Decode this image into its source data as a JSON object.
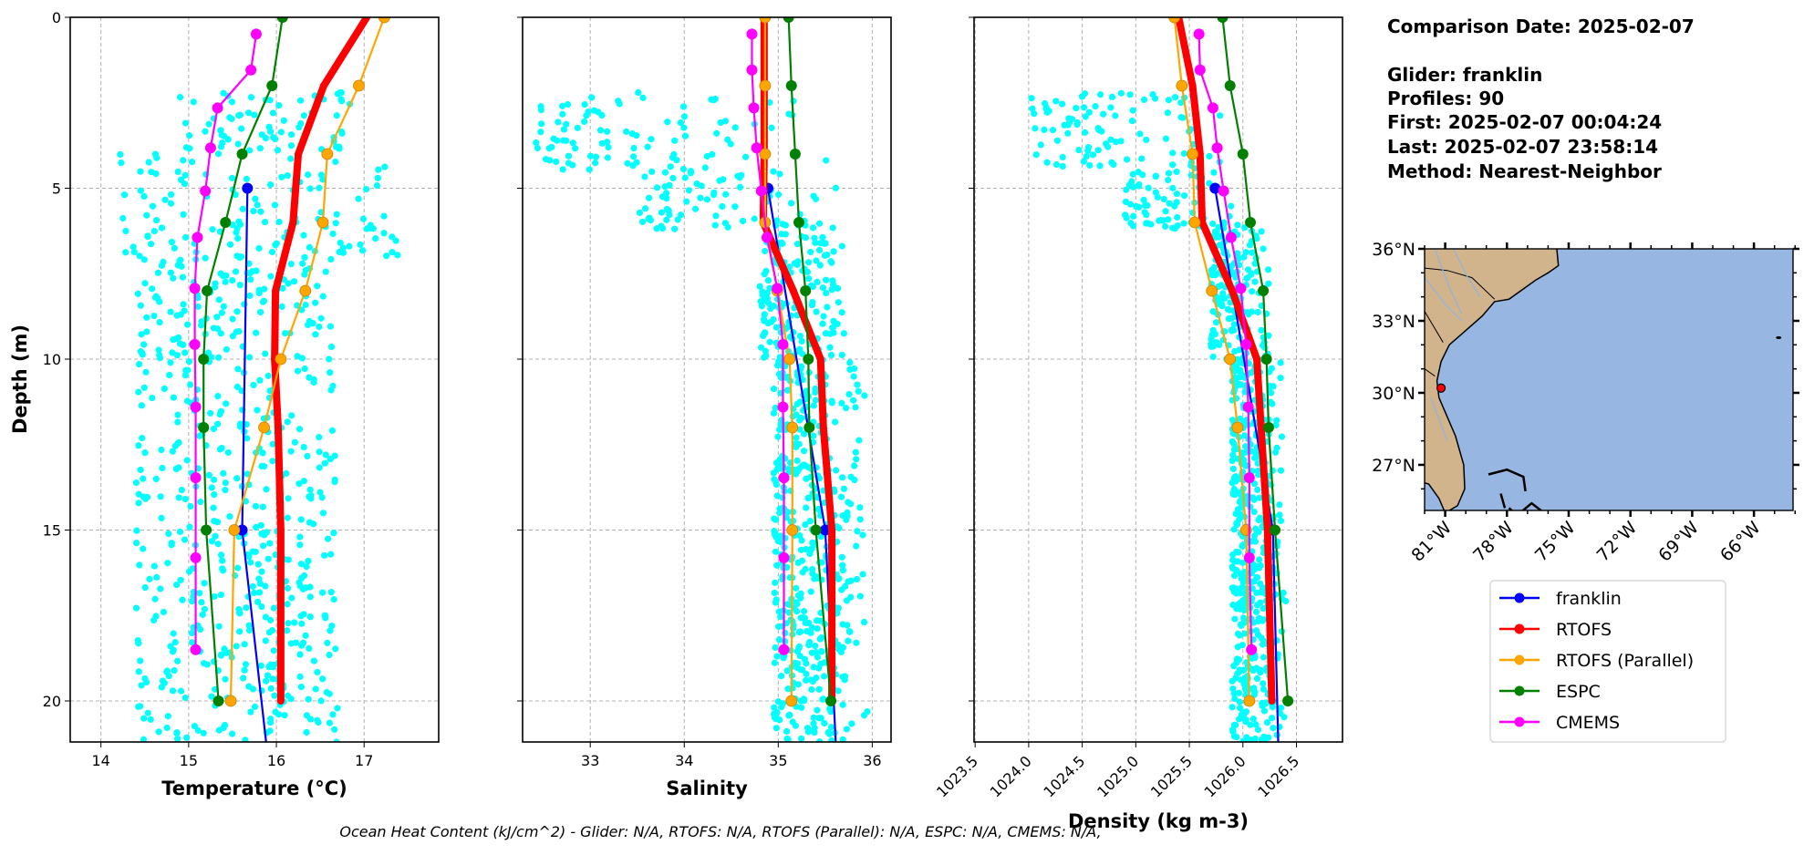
{
  "info": {
    "comparison_date": "Comparison Date: 2025-02-07",
    "glider": "Glider: franklin",
    "profiles": "Profiles: 90",
    "first": "First: 2025-02-07 00:04:24",
    "last": "Last: 2025-02-07 23:58:14",
    "method": "Method: Nearest-Neighbor"
  },
  "footer_note": "Ocean Heat Content (kJ/cm^2) - Glider: N/A,  RTOFS: N/A,  RTOFS (Parallel): N/A,  ESPC: N/A,  CMEMS: N/A,",
  "legend": {
    "placement": "below-map",
    "items": [
      {
        "label": "franklin",
        "color": "#0000ff"
      },
      {
        "label": "RTOFS",
        "color": "#ff0000"
      },
      {
        "label": "RTOFS (Parallel)",
        "color": "#ffa500"
      },
      {
        "label": "ESPC",
        "color": "#008000"
      },
      {
        "label": "CMEMS",
        "color": "#ff00ff"
      }
    ]
  },
  "observation_color": "#00ffff",
  "chart_data": [
    {
      "type": "line",
      "id": "temperature",
      "xlabel": "Temperature (°C)",
      "ylabel": "Depth (m)",
      "xlim": [
        13.65,
        17.85
      ],
      "ylim": [
        21.2,
        0
      ],
      "y_inverted": true,
      "grid": true,
      "xticks": [
        "14",
        "15",
        "16",
        "17"
      ],
      "yticks": [
        "0",
        "5",
        "10",
        "15",
        "20"
      ],
      "observations_envelope": [
        [
          2.2,
          4,
          14.9,
          16.9
        ],
        [
          4,
          7,
          14.2,
          17.4
        ],
        [
          7,
          21.2,
          14.4,
          16.7
        ]
      ],
      "series": [
        {
          "name": "franklin",
          "depth": [
            5,
            15,
            25
          ],
          "values": [
            15.67,
            15.61,
            16.05
          ]
        },
        {
          "name": "RTOFS",
          "depth": [
            0,
            2,
            4,
            6,
            8,
            10,
            12,
            15,
            20
          ],
          "values": [
            17.03,
            16.54,
            16.25,
            16.19,
            15.99,
            15.98,
            16.02,
            16.05,
            16.05
          ]
        },
        {
          "name": "RTOFS (Parallel)",
          "depth": [
            0,
            2,
            4,
            6,
            8,
            10,
            12,
            15,
            20
          ],
          "values": [
            17.23,
            16.94,
            16.58,
            16.53,
            16.33,
            16.05,
            15.86,
            15.52,
            15.48
          ]
        },
        {
          "name": "ESPC",
          "depth": [
            0,
            2,
            4,
            6,
            8,
            10,
            12,
            15,
            20
          ],
          "values": [
            16.07,
            15.95,
            15.61,
            15.42,
            15.21,
            15.17,
            15.17,
            15.2,
            15.34
          ]
        },
        {
          "name": "CMEMS",
          "depth": [
            0.49,
            1.54,
            2.65,
            3.82,
            5.08,
            6.44,
            7.93,
            9.57,
            11.4,
            13.47,
            15.81,
            18.5
          ],
          "values": [
            15.77,
            15.71,
            15.33,
            15.25,
            15.19,
            15.1,
            15.07,
            15.07,
            15.08,
            15.08,
            15.08,
            15.08
          ]
        }
      ]
    },
    {
      "type": "line",
      "id": "salinity",
      "xlabel": "Salinity",
      "xlim": [
        32.28,
        36.2
      ],
      "ylim": [
        21.2,
        0
      ],
      "y_inverted": true,
      "grid": true,
      "xticks": [
        "33",
        "34",
        "35",
        "36"
      ],
      "observations_envelope": [
        [
          2.2,
          4.5,
          32.4,
          35.6
        ],
        [
          4.5,
          6.2,
          33.5,
          35.7
        ],
        [
          6,
          10,
          34.8,
          35.8
        ],
        [
          10,
          21.2,
          34.95,
          35.95
        ]
      ],
      "series": [
        {
          "name": "franklin",
          "depth": [
            5,
            15,
            25
          ],
          "values": [
            34.89,
            35.5,
            35.68
          ]
        },
        {
          "name": "RTOFS",
          "depth": [
            0,
            2,
            4,
            6,
            8,
            10,
            12,
            15,
            20
          ],
          "values": [
            34.85,
            34.85,
            34.85,
            34.84,
            35.16,
            35.45,
            35.48,
            35.57,
            35.57
          ]
        },
        {
          "name": "RTOFS (Parallel)",
          "depth": [
            0,
            2,
            4,
            6,
            8,
            10,
            12,
            15,
            20
          ],
          "values": [
            34.86,
            34.86,
            34.86,
            34.86,
            34.99,
            35.12,
            35.15,
            35.15,
            35.14
          ]
        },
        {
          "name": "ESPC",
          "depth": [
            0,
            2,
            4,
            6,
            8,
            10,
            12,
            15,
            20
          ],
          "values": [
            35.11,
            35.14,
            35.18,
            35.22,
            35.29,
            35.32,
            35.33,
            35.4,
            35.56
          ]
        },
        {
          "name": "CMEMS",
          "depth": [
            0.49,
            1.54,
            2.65,
            3.82,
            5.08,
            6.44,
            7.93,
            9.57,
            11.4,
            13.47,
            15.81,
            18.5
          ],
          "values": [
            34.72,
            34.72,
            34.74,
            34.77,
            34.82,
            34.88,
            34.99,
            35.05,
            35.05,
            35.06,
            35.06,
            35.06
          ]
        }
      ]
    },
    {
      "type": "line",
      "id": "density",
      "xlabel": "Density (kg m-3)",
      "xlim": [
        1023.49,
        1026.93
      ],
      "ylim": [
        21.2,
        0
      ],
      "y_inverted": true,
      "grid": true,
      "xticks": [
        "1023.5",
        "1024.0",
        "1024.5",
        "1025.0",
        "1025.5",
        "1026.0",
        "1026.5"
      ],
      "observations_envelope": [
        [
          2.2,
          4.5,
          1024.0,
          1025.8
        ],
        [
          4.5,
          6.2,
          1024.9,
          1025.9
        ],
        [
          6,
          10,
          1025.7,
          1026.3
        ],
        [
          10,
          21.2,
          1025.9,
          1026.4
        ]
      ],
      "series": [
        {
          "name": "franklin",
          "depth": [
            5,
            15,
            25
          ],
          "values": [
            1025.74,
            1026.28,
            1026.36
          ]
        },
        {
          "name": "RTOFS",
          "depth": [
            0,
            2,
            4,
            6,
            8,
            10,
            12,
            15,
            20
          ],
          "values": [
            1025.4,
            1025.53,
            1025.6,
            1025.62,
            1025.9,
            1026.13,
            1026.17,
            1026.23,
            1026.27
          ]
        },
        {
          "name": "RTOFS (Parallel)",
          "depth": [
            0,
            2,
            4,
            6,
            8,
            10,
            12,
            15,
            20
          ],
          "values": [
            1025.36,
            1025.43,
            1025.53,
            1025.55,
            1025.71,
            1025.88,
            1025.95,
            1026.03,
            1026.06
          ]
        },
        {
          "name": "ESPC",
          "depth": [
            0,
            2,
            4,
            6,
            8,
            10,
            12,
            15,
            20
          ],
          "values": [
            1025.81,
            1025.88,
            1026.0,
            1026.07,
            1026.19,
            1026.22,
            1026.24,
            1026.3,
            1026.42
          ]
        },
        {
          "name": "CMEMS",
          "depth": [
            0.49,
            1.54,
            2.65,
            3.82,
            5.08,
            6.44,
            7.93,
            9.57,
            11.4,
            13.47,
            15.81,
            18.5
          ],
          "values": [
            1025.59,
            1025.6,
            1025.72,
            1025.76,
            1025.82,
            1025.89,
            1025.98,
            1026.03,
            1026.05,
            1026.06,
            1026.06,
            1026.08
          ]
        }
      ]
    },
    {
      "type": "map",
      "id": "map",
      "lon_range": [
        -82.0,
        -64.1
      ],
      "lat_range": [
        25.1,
        36.0
      ],
      "lon_ticks": [
        {
          "value": -81,
          "label": "81°W"
        },
        {
          "value": -78,
          "label": "78°W"
        },
        {
          "value": -75,
          "label": "75°W"
        },
        {
          "value": -72,
          "label": "72°W"
        },
        {
          "value": -69,
          "label": "69°W"
        },
        {
          "value": -66,
          "label": "66°W"
        }
      ],
      "lat_ticks": [
        {
          "value": 36,
          "label": "36°N"
        },
        {
          "value": 33,
          "label": "33°N"
        },
        {
          "value": 30,
          "label": "30°N"
        },
        {
          "value": 27,
          "label": "27°N"
        }
      ],
      "land_color": "#d2b48c",
      "ocean_color": "#97b6e1",
      "glider_position": {
        "lon": -81.2,
        "lat": 30.2,
        "color": "#ff0000"
      }
    }
  ]
}
